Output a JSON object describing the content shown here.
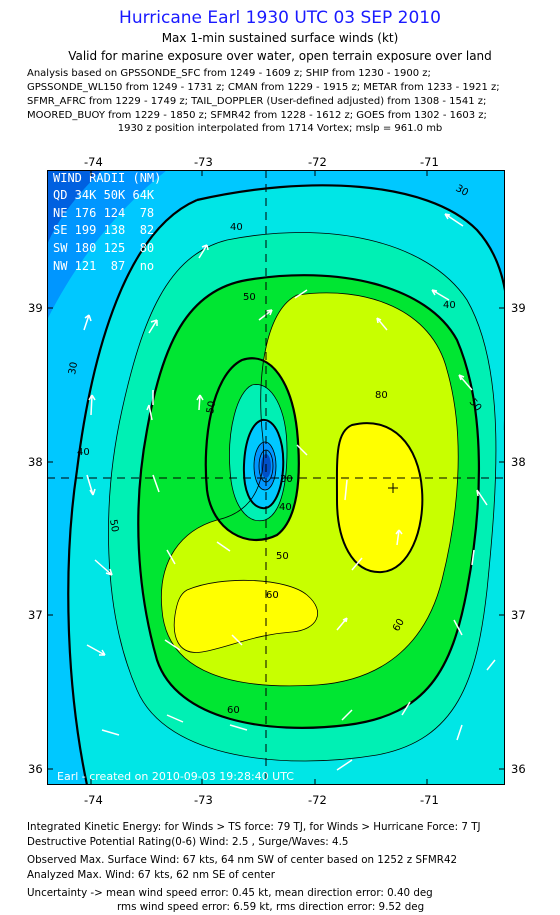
{
  "header": {
    "title": "Hurricane Earl 1930 UTC 03 SEP 2010",
    "subtitle1": "Max 1-min sustained surface winds (kt)",
    "subtitle2": "Valid for marine exposure over water, open terrain exposure over land"
  },
  "analysis_lines": [
    "Analysis based on GPSSONDE_SFC from 1249 - 1609 z; SHIP from 1230 - 1900 z;",
    "GPSSONDE_WL150 from 1249 - 1731 z; CMAN from 1229 - 1915 z; METAR from 1233 - 1921 z;",
    "SFMR_AFRC from 1229 - 1749 z; TAIL_DOPPLER (User-defined adjusted) from 1308 - 1541 z;",
    "MOORED_BUOY from 1229 - 1850 z; SFMR42 from 1228 - 1612 z; GOES from 1302 - 1603 z;"
  ],
  "position_line": "1930 z position interpolated from 1714 Vortex; mslp = 961.0 mb",
  "axes": {
    "lon_ticks": [
      "-74",
      "-73",
      "-72",
      "-71"
    ],
    "lat_ticks": [
      "39",
      "38",
      "37",
      "36"
    ]
  },
  "wind_radii": {
    "title": "WIND RADII (NM)",
    "header": "QD 34K 50K 64K",
    "rows": [
      "NE 176 124  78",
      "SE 199 138  82",
      "SW 180 125  80",
      "NW 121  87  no"
    ]
  },
  "contour_labels": [
    "30",
    "40",
    "50",
    "60",
    "80"
  ],
  "credit": "Earl - created on 2010-09-03 19:28:40 UTC",
  "footer": {
    "line1": "Integrated Kinetic Energy:  for Winds > TS force: 79 TJ,  for Winds > Hurricane Force: 7 TJ",
    "line2": "Destructive Potential Rating(0-6)   Wind: 2.5 , Surge/Waves: 4.5",
    "line3": "Observed Max. Surface Wind: 67 kts, 64 nm SW of center based on 1252 z SFMR42",
    "line4": "Analyzed Max. Wind: 67 kts, 62 nm SE of center",
    "line5": "Uncertainty -> mean wind speed error: 0.45 kt,   mean direction error: 0.40 deg",
    "line6": "rms wind speed error: 6.59 kt,   rms direction error: 9.52 deg"
  },
  "colors": {
    "title": "#1a1aff",
    "band_low": "#00c8ff",
    "band_mid": "#00f0c8",
    "band_50": "#00e632",
    "band_60": "#c8ff00",
    "band_70": "#ffff00",
    "center": "#0050c8"
  }
}
